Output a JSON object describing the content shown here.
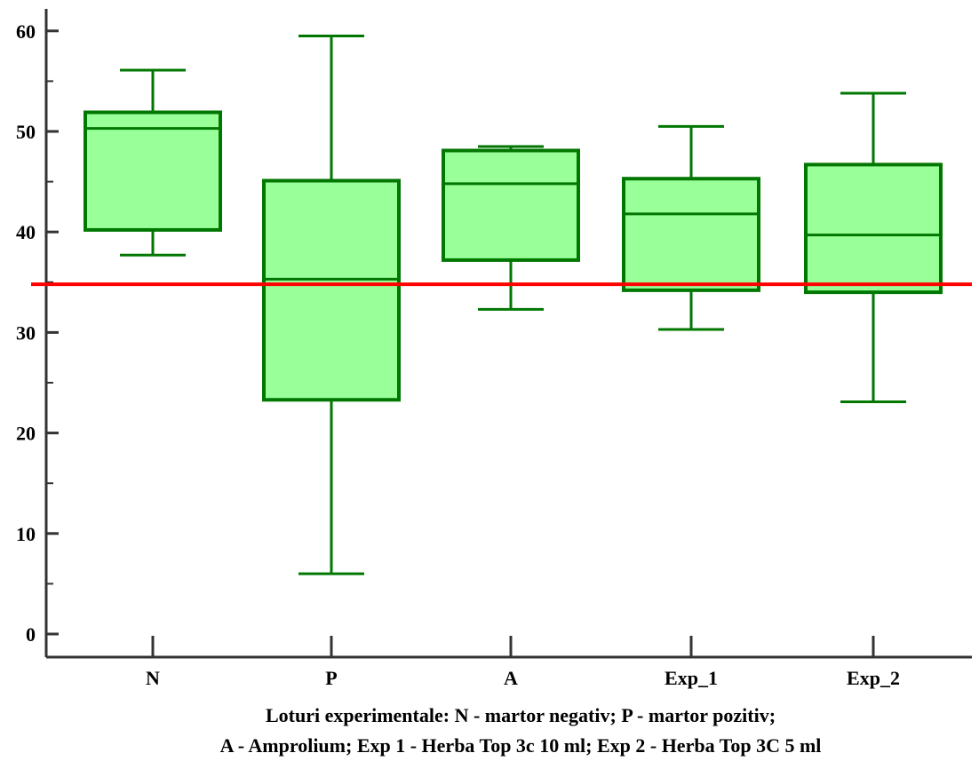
{
  "chart_data": {
    "type": "box",
    "categories": [
      "N",
      "P",
      "A",
      "Exp_1",
      "Exp_2"
    ],
    "boxes": [
      {
        "category": "N",
        "min": 37.7,
        "q1": 40.2,
        "median": 50.3,
        "q3": 51.9,
        "max": 56.1
      },
      {
        "category": "P",
        "min": 6.0,
        "q1": 23.3,
        "median": 35.3,
        "q3": 45.1,
        "max": 59.5
      },
      {
        "category": "A",
        "min": 32.3,
        "q1": 37.2,
        "median": 44.8,
        "q3": 48.1,
        "max": 48.5
      },
      {
        "category": "Exp_1",
        "min": 30.3,
        "q1": 34.2,
        "median": 41.8,
        "q3": 45.3,
        "max": 50.5
      },
      {
        "category": "Exp_2",
        "min": 23.1,
        "q1": 34.0,
        "median": 39.7,
        "q3": 46.7,
        "max": 53.8
      }
    ],
    "reference_line": {
      "y": 34.8,
      "color": "#ff0000"
    },
    "yticks": [
      0,
      10,
      20,
      30,
      40,
      50,
      60
    ],
    "ylim": [
      -2,
      62
    ],
    "xlabel_lines": [
      "Loturi experimentale: N - martor negativ; P - martor pozitiv;",
      "A - Amprolium; Exp 1 - Herba Top 3c 10 ml; Exp 2 - Herba Top 3C 5 ml"
    ],
    "colors": {
      "box_fill": "#99ff99",
      "box_stroke": "#007700",
      "axis": "#333333"
    }
  }
}
